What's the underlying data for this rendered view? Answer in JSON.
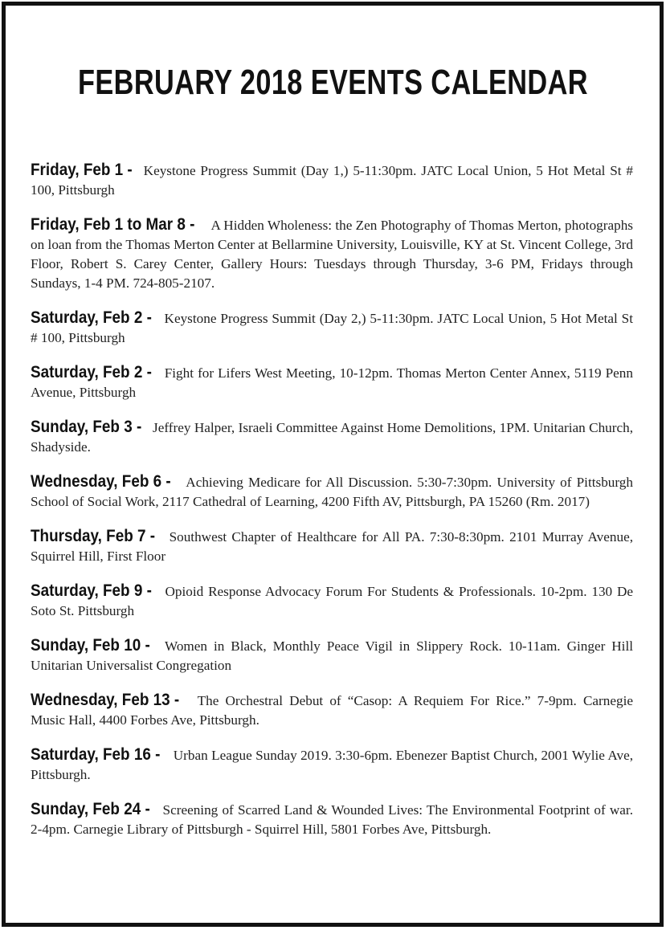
{
  "title": "FEBRUARY 2018 EVENTS CALENDAR",
  "events": [
    {
      "when": "Friday, Feb 1 -",
      "desc": "Keystone Progress Summit (Day 1,) 5-11:30pm. JATC Local Union, 5 Hot Metal St # 100, Pittsburgh"
    },
    {
      "when": "Friday, Feb 1 to Mar 8 -",
      "desc": "A Hidden Wholeness: the Zen Photography of Thomas Merton, photographs on loan from the Thomas Merton Center at Bellarmine University, Louisville, KY at St. Vincent College, 3rd Floor, Robert S. Carey Center, Gallery Hours: Tuesdays through Thursday, 3-6 PM, Fridays through Sundays, 1-4 PM. 724-805-2107."
    },
    {
      "when": "Saturday, Feb 2 -",
      "desc": "Keystone Progress Summit (Day 2,) 5-11:30pm. JATC Local Union, 5 Hot Metal St # 100, Pittsburgh"
    },
    {
      "when": "Saturday, Feb 2 -",
      "desc": "Fight for Lifers West Meeting, 10-12pm. Thomas Merton Center Annex, 5119 Penn Avenue, Pittsburgh"
    },
    {
      "when": "Sunday, Feb 3 -",
      "desc": "Jeffrey Halper, Israeli Committee Against Home Demolitions, 1PM. Unitarian Church, Shadyside."
    },
    {
      "when": "Wednesday, Feb 6 -",
      "desc": "Achieving Medicare for All Discussion. 5:30-7:30pm. University of Pittsburgh School of Social Work, 2117 Cathedral of Learning, 4200 Fifth AV, Pittsburgh, PA 15260 (Rm. 2017)"
    },
    {
      "when": "Thursday, Feb 7 -",
      "desc": "Southwest Chapter of Healthcare for All PA. 7:30-8:30pm. 2101 Murray Avenue, Squirrel Hill, First Floor"
    },
    {
      "when": "Saturday, Feb 9 -",
      "desc": "Opioid Response Advocacy Forum For Students & Professionals. 10-2pm. 130 De Soto St. Pittsburgh"
    },
    {
      "when": "Sunday, Feb 10 -",
      "desc": "Women in Black, Monthly Peace Vigil in Slippery Rock. 10-11am. Ginger Hill Unitarian Universalist Congregation"
    },
    {
      "when": "Wednesday, Feb 13 -",
      "desc": "The Orchestral Debut of “Casop: A Requiem For Rice.” 7-9pm. Carnegie Music Hall, 4400 Forbes Ave, Pittsburgh."
    },
    {
      "when": "Saturday, Feb 16 -",
      "desc": "Urban League Sunday 2019. 3:30-6pm. Ebenezer Baptist Church, 2001 Wylie Ave, Pittsburgh."
    },
    {
      "when": "Sunday, Feb 24 -",
      "desc": "Screening of Scarred Land & Wounded Lives: The Environmental Footprint of war. 2-4pm. Carnegie Library of Pittsburgh - Squirrel Hill, 5801 Forbes Ave, Pittsburgh."
    }
  ]
}
